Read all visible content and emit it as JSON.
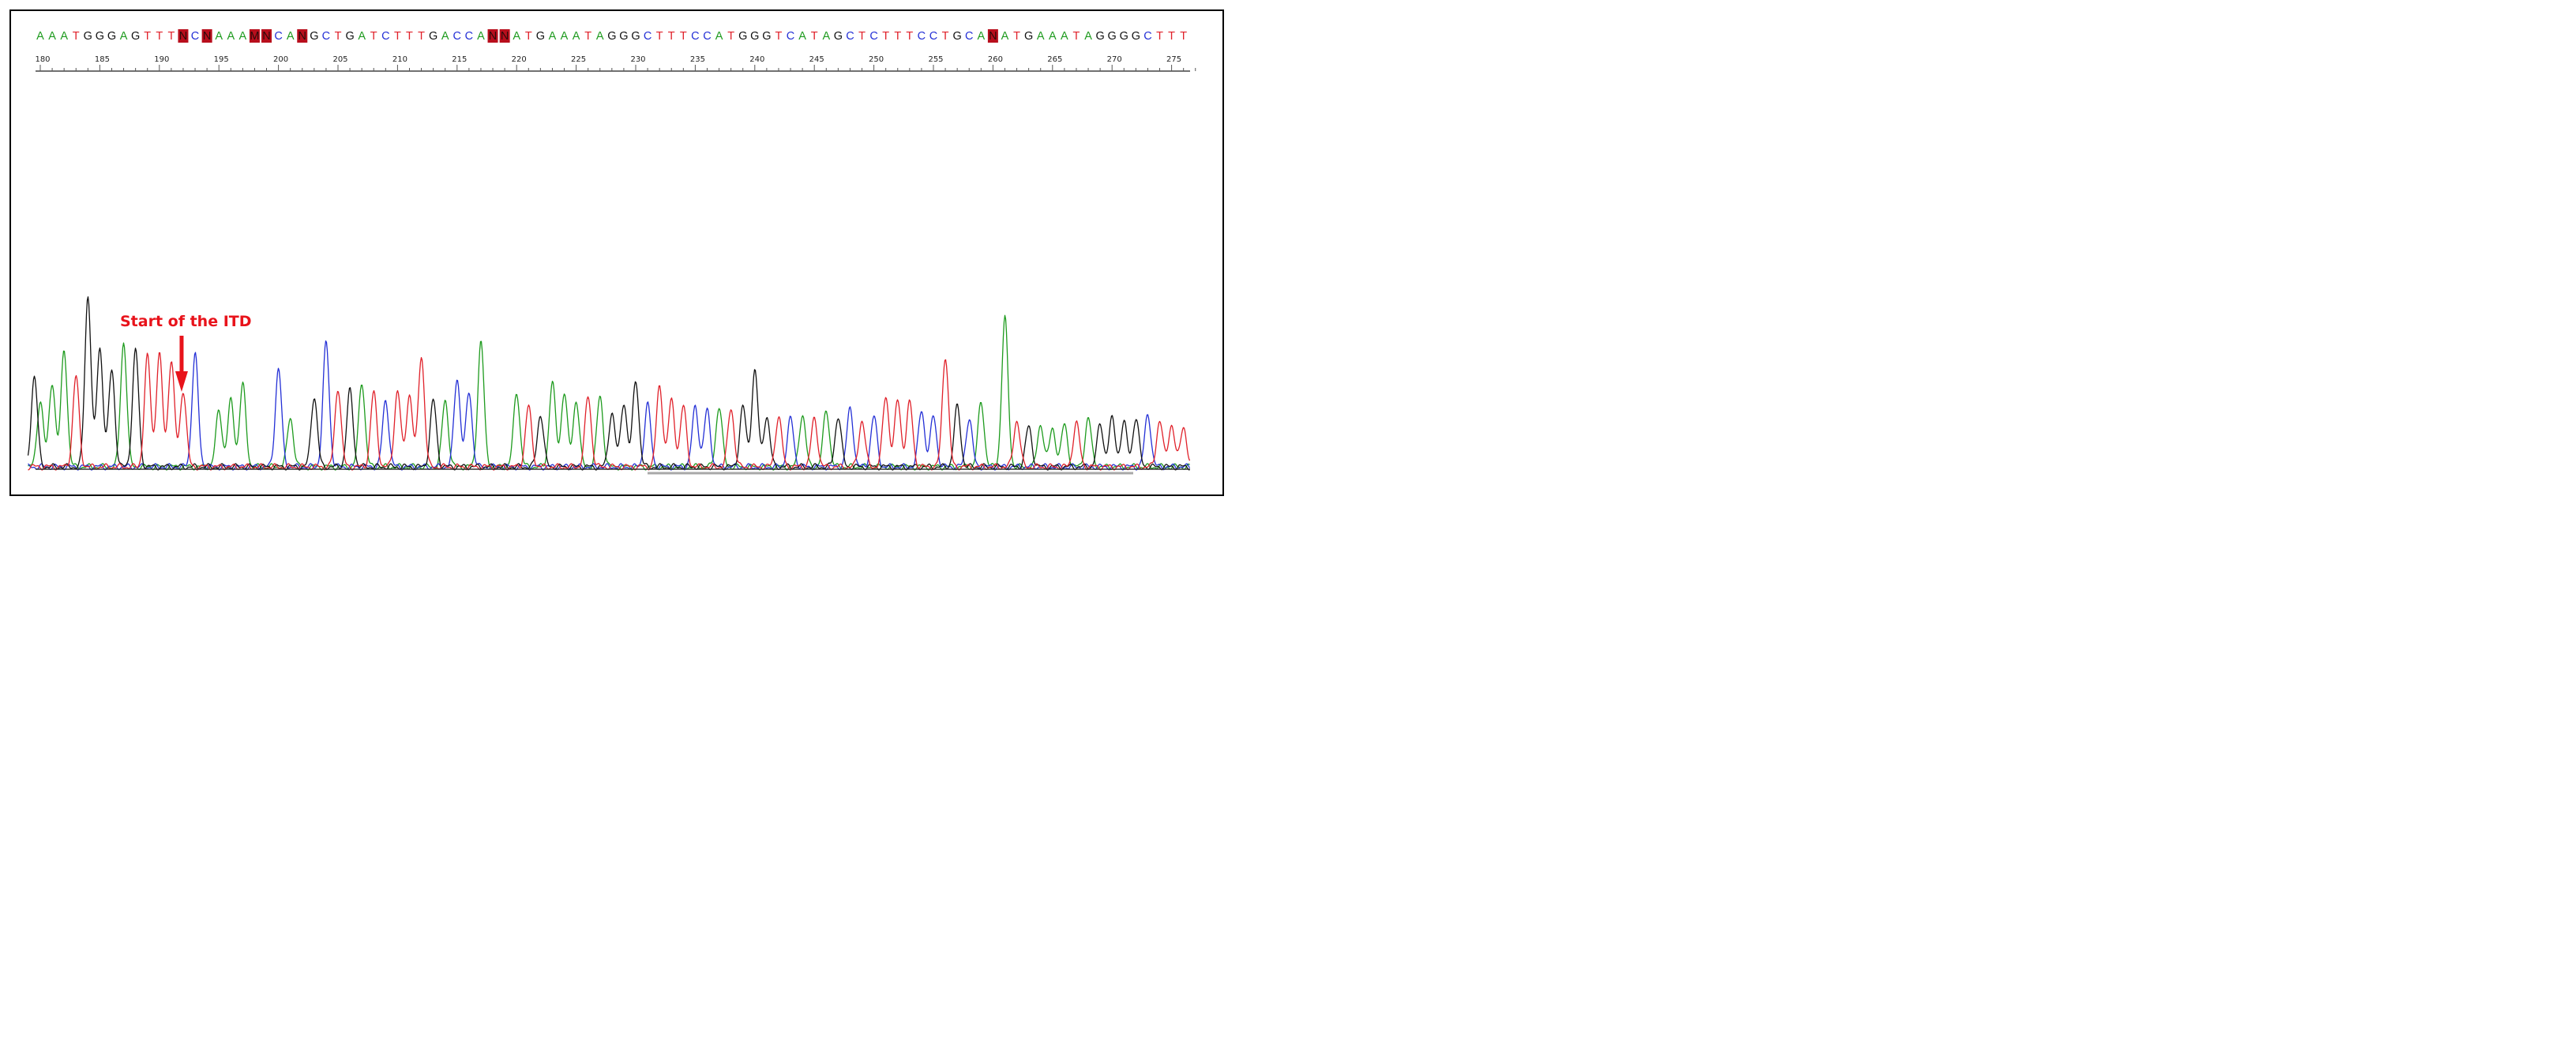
{
  "annotation": {
    "text": "Start of the ITD",
    "color": "#e8131b",
    "position_base": 192
  },
  "colors": {
    "A": "#1e9b1e",
    "C": "#2430d6",
    "G": "#111111",
    "T": "#e0212a",
    "N": "#111111",
    "highlight": "#b80e1c"
  },
  "chart_data": {
    "type": "line",
    "title": "",
    "xlabel": "",
    "ylabel": "",
    "x_range": [
      179.5,
      277.0
    ],
    "x_ticks": [
      180,
      185,
      190,
      195,
      200,
      205,
      210,
      215,
      220,
      225,
      230,
      235,
      240,
      245,
      250,
      255,
      260,
      265,
      270,
      275
    ],
    "x_tick_labels": [
      "180",
      "185",
      "190",
      "195",
      "200",
      "205",
      "210",
      "215",
      "220",
      "225",
      "230",
      "235",
      "240",
      "245",
      "250",
      "255",
      "260",
      "265",
      "270",
      "275"
    ],
    "sequence": [
      {
        "pos": 180,
        "base": "A"
      },
      {
        "pos": 181,
        "base": "A"
      },
      {
        "pos": 182,
        "base": "A"
      },
      {
        "pos": 183,
        "base": "T"
      },
      {
        "pos": 184,
        "base": "G"
      },
      {
        "pos": 185,
        "base": "G"
      },
      {
        "pos": 186,
        "base": "G"
      },
      {
        "pos": 187,
        "base": "A"
      },
      {
        "pos": 188,
        "base": "G"
      },
      {
        "pos": 189,
        "base": "T"
      },
      {
        "pos": 190,
        "base": "T"
      },
      {
        "pos": 191,
        "base": "T"
      },
      {
        "pos": 192,
        "base": "N",
        "highlight": true
      },
      {
        "pos": 193,
        "base": "C"
      },
      {
        "pos": 194,
        "base": "N",
        "highlight": true
      },
      {
        "pos": 195,
        "base": "A"
      },
      {
        "pos": 196,
        "base": "A"
      },
      {
        "pos": 197,
        "base": "A"
      },
      {
        "pos": 198,
        "base": "M",
        "highlight": true
      },
      {
        "pos": 199,
        "base": "N",
        "highlight": true
      },
      {
        "pos": 200,
        "base": "C"
      },
      {
        "pos": 201,
        "base": "A"
      },
      {
        "pos": 202,
        "base": "N",
        "highlight": true
      },
      {
        "pos": 203,
        "base": "G"
      },
      {
        "pos": 204,
        "base": "C"
      },
      {
        "pos": 205,
        "base": "T"
      },
      {
        "pos": 206,
        "base": "G"
      },
      {
        "pos": 207,
        "base": "A"
      },
      {
        "pos": 208,
        "base": "T"
      },
      {
        "pos": 209,
        "base": "C"
      },
      {
        "pos": 210,
        "base": "T"
      },
      {
        "pos": 211,
        "base": "T"
      },
      {
        "pos": 212,
        "base": "T"
      },
      {
        "pos": 213,
        "base": "G"
      },
      {
        "pos": 214,
        "base": "A"
      },
      {
        "pos": 215,
        "base": "C"
      },
      {
        "pos": 216,
        "base": "C"
      },
      {
        "pos": 217,
        "base": "A"
      },
      {
        "pos": 218,
        "base": "N",
        "highlight": true
      },
      {
        "pos": 219,
        "base": "N",
        "highlight": true
      },
      {
        "pos": 220,
        "base": "A"
      },
      {
        "pos": 221,
        "base": "T"
      },
      {
        "pos": 222,
        "base": "G"
      },
      {
        "pos": 223,
        "base": "A"
      },
      {
        "pos": 224,
        "base": "A"
      },
      {
        "pos": 225,
        "base": "A"
      },
      {
        "pos": 226,
        "base": "T"
      },
      {
        "pos": 227,
        "base": "A"
      },
      {
        "pos": 228,
        "base": "G"
      },
      {
        "pos": 229,
        "base": "G"
      },
      {
        "pos": 230,
        "base": "G"
      },
      {
        "pos": 231,
        "base": "C"
      },
      {
        "pos": 232,
        "base": "T"
      },
      {
        "pos": 233,
        "base": "T"
      },
      {
        "pos": 234,
        "base": "T"
      },
      {
        "pos": 235,
        "base": "C"
      },
      {
        "pos": 236,
        "base": "C"
      },
      {
        "pos": 237,
        "base": "A"
      },
      {
        "pos": 238,
        "base": "T"
      },
      {
        "pos": 239,
        "base": "G"
      },
      {
        "pos": 240,
        "base": "G"
      },
      {
        "pos": 241,
        "base": "G"
      },
      {
        "pos": 242,
        "base": "T"
      },
      {
        "pos": 243,
        "base": "C"
      },
      {
        "pos": 244,
        "base": "A"
      },
      {
        "pos": 245,
        "base": "T"
      },
      {
        "pos": 246,
        "base": "A"
      },
      {
        "pos": 247,
        "base": "G"
      },
      {
        "pos": 248,
        "base": "C"
      },
      {
        "pos": 249,
        "base": "T"
      },
      {
        "pos": 250,
        "base": "C"
      },
      {
        "pos": 251,
        "base": "T"
      },
      {
        "pos": 252,
        "base": "T"
      },
      {
        "pos": 253,
        "base": "T"
      },
      {
        "pos": 254,
        "base": "C"
      },
      {
        "pos": 255,
        "base": "C"
      },
      {
        "pos": 256,
        "base": "T"
      },
      {
        "pos": 257,
        "base": "G"
      },
      {
        "pos": 258,
        "base": "C"
      },
      {
        "pos": 259,
        "base": "A"
      },
      {
        "pos": 260,
        "base": "N",
        "highlight": true
      },
      {
        "pos": 261,
        "base": "A"
      },
      {
        "pos": 262,
        "base": "T"
      },
      {
        "pos": 263,
        "base": "G"
      },
      {
        "pos": 264,
        "base": "A"
      },
      {
        "pos": 265,
        "base": "A"
      },
      {
        "pos": 266,
        "base": "A"
      },
      {
        "pos": 267,
        "base": "T"
      },
      {
        "pos": 268,
        "base": "A"
      },
      {
        "pos": 269,
        "base": "G"
      },
      {
        "pos": 270,
        "base": "G"
      },
      {
        "pos": 271,
        "base": "G"
      },
      {
        "pos": 272,
        "base": "G"
      },
      {
        "pos": 273,
        "base": "C"
      },
      {
        "pos": 274,
        "base": "T"
      },
      {
        "pos": 275,
        "base": "T"
      },
      {
        "pos": 276,
        "base": "T"
      }
    ],
    "series": [
      {
        "base": "A",
        "peaks": [
          [
            180,
            0.33
          ],
          [
            181,
            0.42
          ],
          [
            182,
            0.58
          ],
          [
            187,
            0.62
          ],
          [
            195,
            0.28
          ],
          [
            196,
            0.33
          ],
          [
            197,
            0.41
          ],
          [
            201,
            0.24
          ],
          [
            207,
            0.42
          ],
          [
            214,
            0.33
          ],
          [
            217,
            0.62
          ],
          [
            220,
            0.37
          ],
          [
            223,
            0.42
          ],
          [
            224,
            0.37
          ],
          [
            225,
            0.33
          ],
          [
            227,
            0.35
          ],
          [
            237,
            0.3
          ],
          [
            244,
            0.26
          ],
          [
            246,
            0.28
          ],
          [
            259,
            0.32
          ],
          [
            261,
            0.74
          ],
          [
            264,
            0.21
          ],
          [
            265,
            0.19
          ],
          [
            266,
            0.21
          ],
          [
            268,
            0.24
          ]
        ]
      },
      {
        "base": "C",
        "peaks": [
          [
            193,
            0.56
          ],
          [
            200,
            0.49
          ],
          [
            204,
            0.62
          ],
          [
            209,
            0.33
          ],
          [
            215,
            0.44
          ],
          [
            216,
            0.37
          ],
          [
            231,
            0.31
          ],
          [
            235,
            0.3
          ],
          [
            236,
            0.28
          ],
          [
            243,
            0.24
          ],
          [
            248,
            0.29
          ],
          [
            250,
            0.25
          ],
          [
            254,
            0.28
          ],
          [
            255,
            0.25
          ],
          [
            258,
            0.24
          ],
          [
            273,
            0.26
          ]
        ]
      },
      {
        "base": "G",
        "peaks": [
          [
            179.5,
            0.45
          ],
          [
            184,
            0.85
          ],
          [
            185,
            0.59
          ],
          [
            186,
            0.48
          ],
          [
            188,
            0.58
          ],
          [
            203,
            0.35
          ],
          [
            206,
            0.38
          ],
          [
            213,
            0.33
          ],
          [
            222,
            0.26
          ],
          [
            228,
            0.27
          ],
          [
            229,
            0.32
          ],
          [
            230,
            0.43
          ],
          [
            239,
            0.3
          ],
          [
            240,
            0.48
          ],
          [
            241,
            0.25
          ],
          [
            247,
            0.25
          ],
          [
            257,
            0.3
          ],
          [
            263,
            0.2
          ],
          [
            269,
            0.21
          ],
          [
            270,
            0.24
          ],
          [
            271,
            0.22
          ],
          [
            272,
            0.24
          ]
        ]
      },
      {
        "base": "T",
        "peaks": [
          [
            183,
            0.45
          ],
          [
            189,
            0.55
          ],
          [
            190,
            0.56
          ],
          [
            191,
            0.53
          ],
          [
            192,
            0.38
          ],
          [
            205,
            0.39
          ],
          [
            208,
            0.37
          ],
          [
            210,
            0.38
          ],
          [
            211,
            0.36
          ],
          [
            212,
            0.55
          ],
          [
            221,
            0.3
          ],
          [
            226,
            0.35
          ],
          [
            232,
            0.4
          ],
          [
            233,
            0.33
          ],
          [
            234,
            0.3
          ],
          [
            238,
            0.29
          ],
          [
            242,
            0.25
          ],
          [
            245,
            0.24
          ],
          [
            249,
            0.23
          ],
          [
            251,
            0.35
          ],
          [
            252,
            0.33
          ],
          [
            253,
            0.32
          ],
          [
            256,
            0.55
          ],
          [
            262,
            0.23
          ],
          [
            267,
            0.22
          ],
          [
            274,
            0.23
          ],
          [
            275,
            0.21
          ],
          [
            276,
            0.2
          ]
        ]
      }
    ]
  }
}
